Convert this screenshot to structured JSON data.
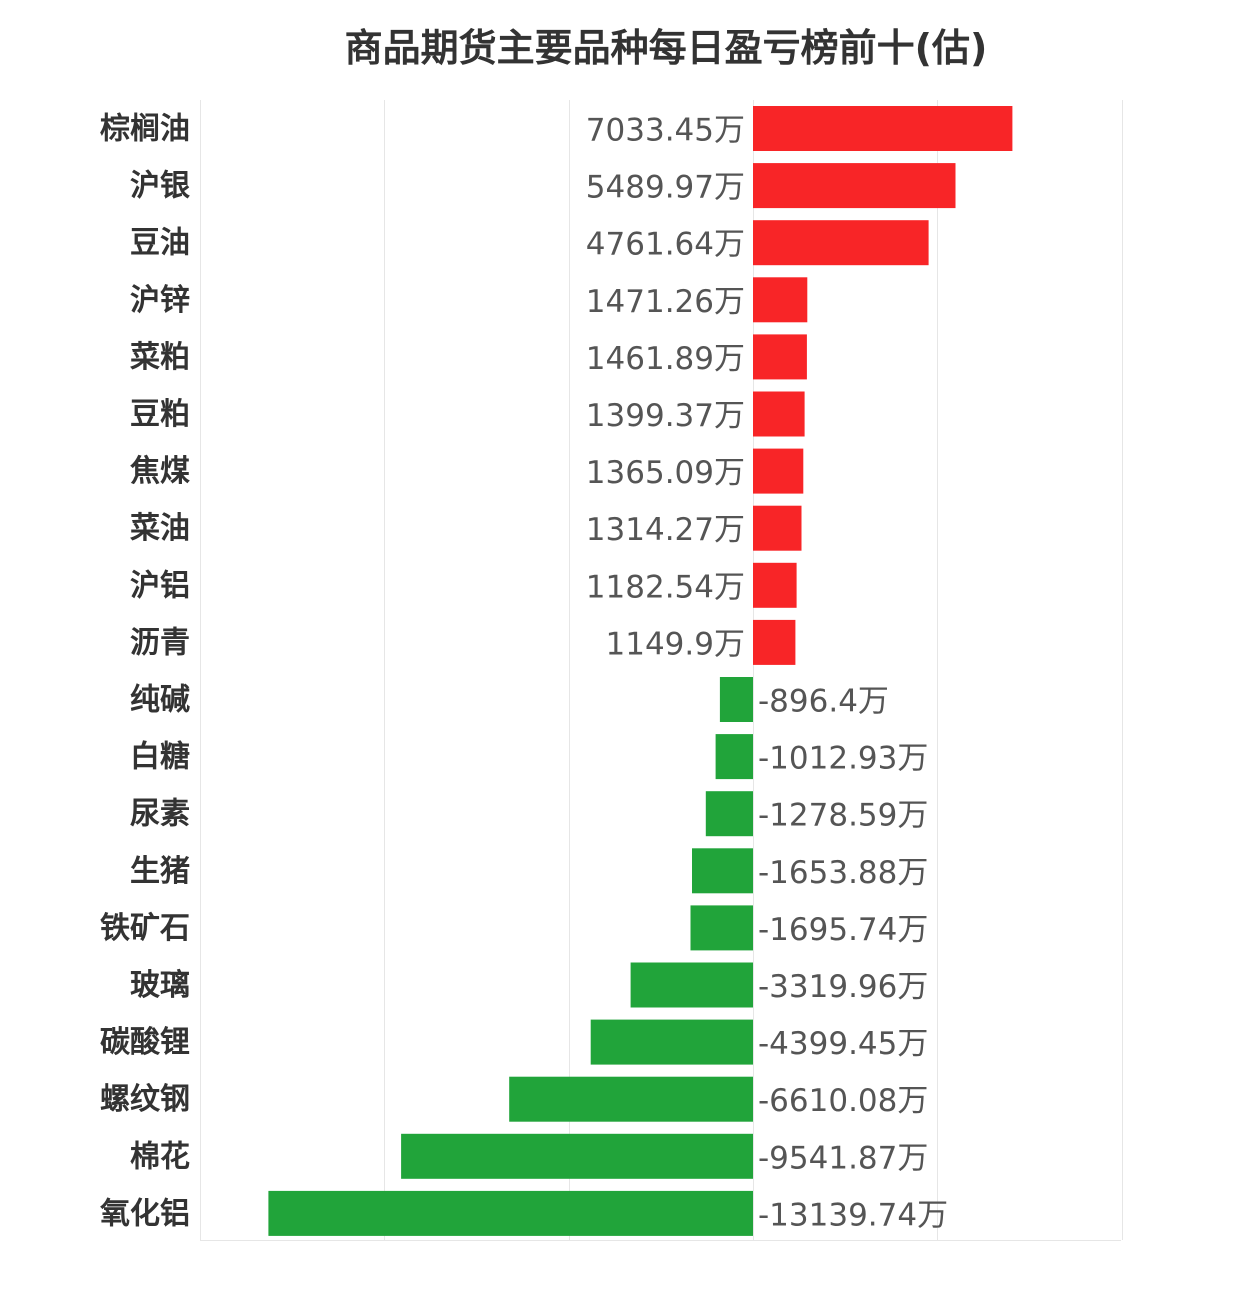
{
  "chart_data": {
    "type": "bar",
    "orientation": "horizontal",
    "title": "商品期货主要品种每日盈亏榜前十(估)",
    "unit": "万",
    "grid": true,
    "xlim": [
      -15000,
      10000
    ],
    "colors": {
      "positive": "#f82527",
      "negative": "#21a43a"
    },
    "categories": [
      "棕榈油",
      "沪银",
      "豆油",
      "沪锌",
      "菜粕",
      "豆粕",
      "焦煤",
      "菜油",
      "沪铝",
      "沥青",
      "纯碱",
      "白糖",
      "尿素",
      "生猪",
      "铁矿石",
      "玻璃",
      "碳酸锂",
      "螺纹钢",
      "棉花",
      "氧化铝"
    ],
    "values": [
      7033.45,
      5489.97,
      4761.64,
      1471.26,
      1461.89,
      1399.37,
      1365.09,
      1314.27,
      1182.54,
      1149.9,
      -896.4,
      -1012.93,
      -1278.59,
      -1653.88,
      -1695.74,
      -3319.96,
      -4399.45,
      -6610.08,
      -9541.87,
      -13139.74
    ],
    "value_labels": [
      "7033.45万",
      "5489.97万",
      "4761.64万",
      "1471.26万",
      "1461.89万",
      "1399.37万",
      "1365.09万",
      "1314.27万",
      "1182.54万",
      "1149.9万",
      "-896.4万",
      "-1012.93万",
      "-1278.59万",
      "-1653.88万",
      "-1695.74万",
      "-3319.96万",
      "-4399.45万",
      "-6610.08万",
      "-9541.87万",
      "-13139.74万"
    ]
  }
}
